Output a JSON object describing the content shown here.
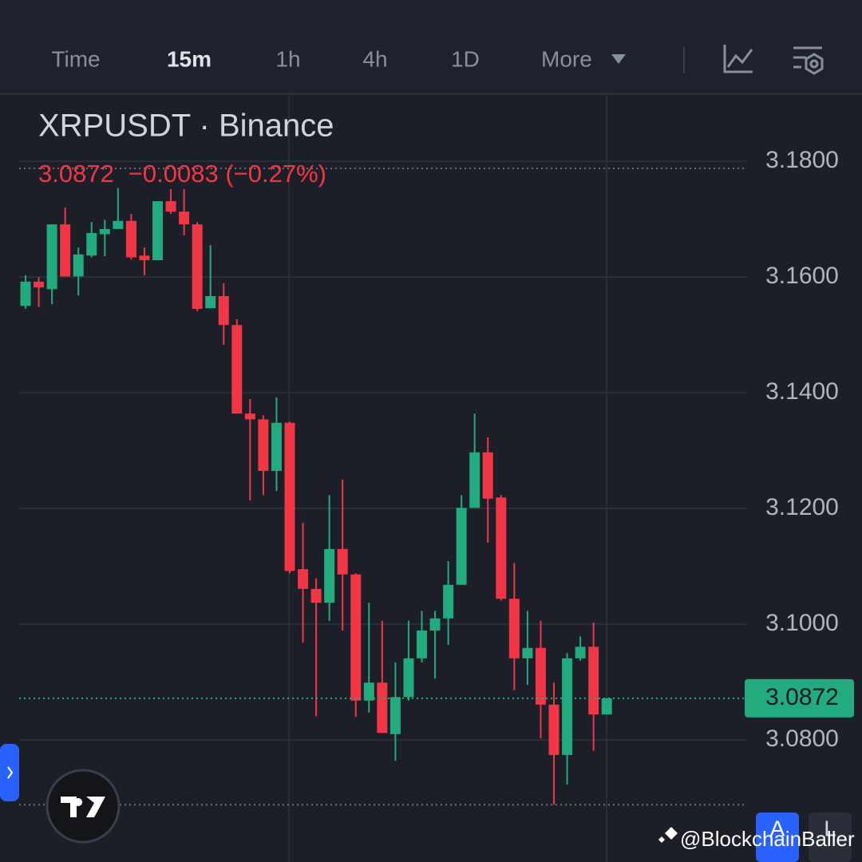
{
  "toolbar": {
    "items": [
      "Time",
      "15m",
      "1h",
      "4h",
      "1D",
      "More"
    ]
  },
  "watermark": "@BlockchainBaller",
  "buttons": [
    "A",
    "L"
  ],
  "chart_data": {
    "type": "candlestick",
    "title": "XRPUSDT · Binance",
    "price_label": "3.0872",
    "change_label": "−0.0083 (−0.27%)",
    "up_color": "#22ab7e",
    "down_color": "#f23645",
    "grid": true,
    "ylim": [
      3.0589,
      3.1916
    ],
    "yticks": [
      {
        "value": 3.18,
        "label": "3.1800"
      },
      {
        "value": 3.16,
        "label": "3.1600"
      },
      {
        "value": 3.14,
        "label": "3.1400"
      },
      {
        "value": 3.12,
        "label": "3.1200"
      },
      {
        "value": 3.1,
        "label": "3.1000"
      },
      {
        "value": 3.08,
        "label": "3.0800"
      }
    ],
    "current_price": {
      "value": 3.0872,
      "label": "3.0872"
    },
    "open": [
      3.155,
      3.1592,
      3.1579,
      3.1691,
      3.1601,
      3.1637,
      3.1674,
      3.1683,
      3.1697,
      3.1637,
      3.1629,
      3.1731,
      3.1713,
      3.1691,
      3.1546,
      3.1567,
      3.1517,
      3.1364,
      3.1354,
      3.1265,
      3.1348,
      3.1095,
      3.1061,
      3.1037,
      3.113,
      3.1086,
      3.0868,
      3.0899,
      3.081,
      3.0874,
      3.0941,
      3.0989,
      3.101,
      3.1068,
      3.1201,
      3.1297,
      3.1219,
      3.1044,
      3.0941,
      3.0959,
      3.0861,
      3.0774,
      3.0941,
      3.0961,
      3.0844
    ],
    "high": [
      3.1603,
      3.16,
      3.1691,
      3.172,
      3.1651,
      3.1695,
      3.1699,
      3.1754,
      3.1709,
      3.1651,
      3.1731,
      3.1752,
      3.1752,
      3.1695,
      3.1655,
      3.1589,
      3.1527,
      3.1389,
      3.1361,
      3.1392,
      3.135,
      3.1175,
      3.1079,
      3.1223,
      3.125,
      3.1088,
      3.1037,
      3.1006,
      3.0934,
      3.1006,
      3.1023,
      3.1023,
      3.1109,
      3.1223,
      3.1364,
      3.1323,
      3.1223,
      3.1106,
      3.1023,
      3.1006,
      3.0899,
      3.095,
      3.0979,
      3.1003,
      3.0872
    ],
    "low": [
      3.1545,
      3.1548,
      3.1553,
      3.1601,
      3.1568,
      3.1634,
      3.1636,
      3.1683,
      3.163,
      3.1603,
      3.1629,
      3.1709,
      3.1672,
      3.1541,
      3.1546,
      3.1483,
      3.1364,
      3.1214,
      3.1223,
      3.123,
      3.1088,
      3.0968,
      3.0841,
      3.1006,
      3.0989,
      3.084,
      3.0847,
      3.0812,
      3.0764,
      3.0868,
      3.0934,
      3.0906,
      3.0964,
      3.1068,
      3.1201,
      3.1141,
      3.1041,
      3.0886,
      3.0895,
      3.0803,
      3.0688,
      3.0723,
      3.0937,
      3.0781,
      3.0844
    ],
    "close": [
      3.1592,
      3.1582,
      3.1691,
      3.1601,
      3.1639,
      3.1676,
      3.1683,
      3.1697,
      3.1634,
      3.1629,
      3.1731,
      3.1713,
      3.1691,
      3.1545,
      3.1567,
      3.1517,
      3.1364,
      3.1354,
      3.1265,
      3.1348,
      3.1092,
      3.1061,
      3.1037,
      3.113,
      3.1086,
      3.0868,
      3.0899,
      3.0812,
      3.0874,
      3.0941,
      3.0989,
      3.101,
      3.1068,
      3.1201,
      3.1297,
      3.1217,
      3.1044,
      3.0941,
      3.0959,
      3.0861,
      3.0774,
      3.0941,
      3.0961,
      3.0844,
      3.0872
    ]
  }
}
